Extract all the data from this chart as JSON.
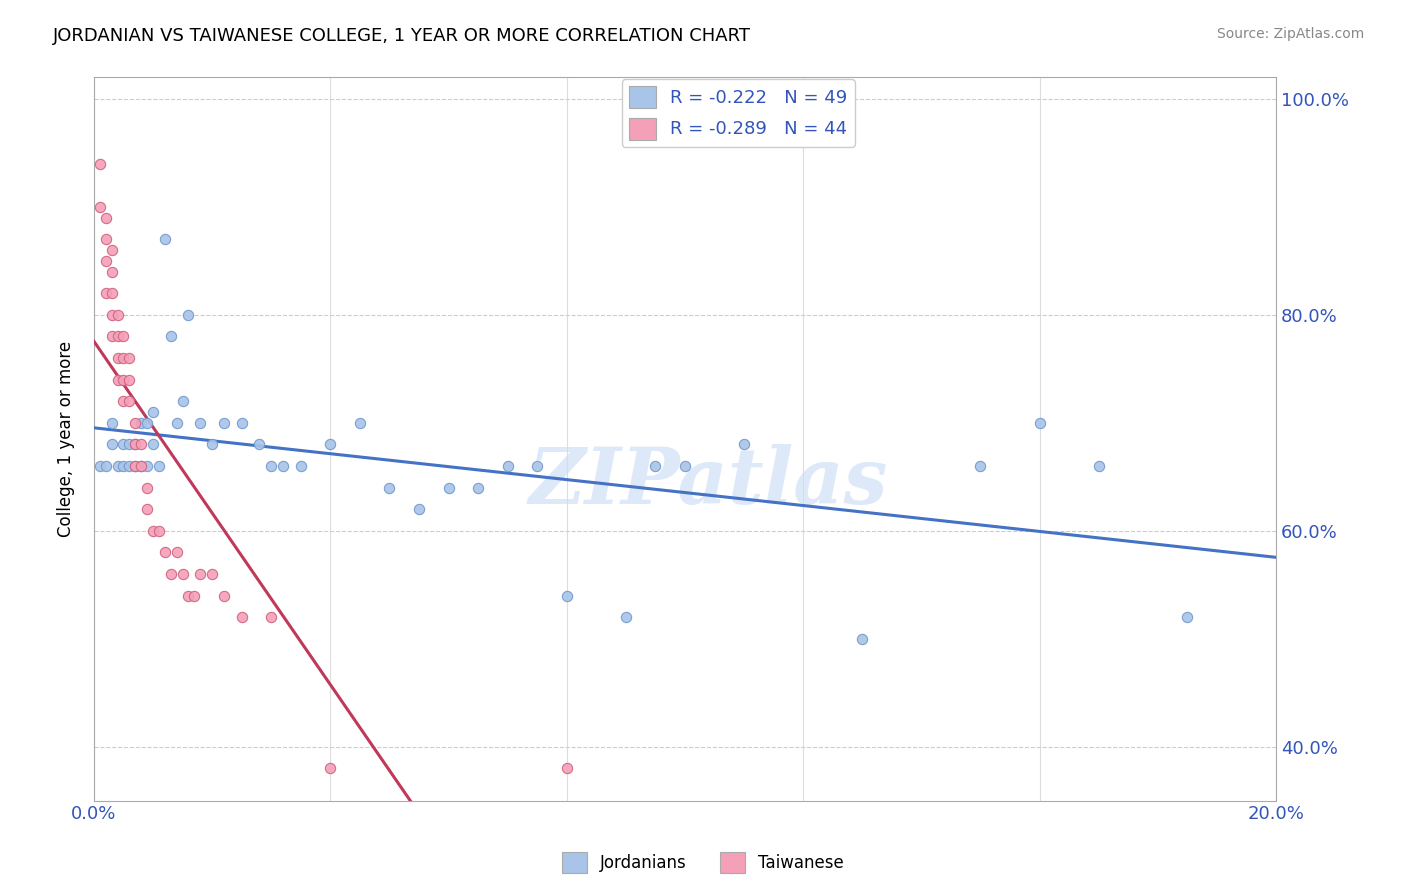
{
  "title": "JORDANIAN VS TAIWANESE COLLEGE, 1 YEAR OR MORE CORRELATION CHART",
  "source": "Source: ZipAtlas.com",
  "ylabel": "College, 1 year or more",
  "xlim": [
    0.0,
    0.2
  ],
  "ylim": [
    0.35,
    1.02
  ],
  "xtick_positions": [
    0.0,
    0.04,
    0.08,
    0.12,
    0.16,
    0.2
  ],
  "xticklabels": [
    "0.0%",
    "",
    "",
    "",
    "",
    "20.0%"
  ],
  "ytick_positions": [
    0.4,
    0.6,
    0.8,
    1.0
  ],
  "yticklabels": [
    "40.0%",
    "60.0%",
    "80.0%",
    "100.0%"
  ],
  "jordanians_color": "#a8c4e8",
  "taiwanese_color": "#f4a0b8",
  "trend_jordanians_color": "#4472c4",
  "trend_taiwanese_color": "#c0385a",
  "trend_dashed_color": "#d0a0b0",
  "watermark": "ZIPatlas",
  "jordanians_x": [
    0.001,
    0.002,
    0.003,
    0.003,
    0.004,
    0.005,
    0.005,
    0.006,
    0.006,
    0.007,
    0.007,
    0.008,
    0.008,
    0.009,
    0.009,
    0.01,
    0.01,
    0.011,
    0.012,
    0.013,
    0.014,
    0.015,
    0.016,
    0.018,
    0.02,
    0.022,
    0.025,
    0.028,
    0.03,
    0.032,
    0.035,
    0.04,
    0.045,
    0.05,
    0.055,
    0.06,
    0.065,
    0.07,
    0.075,
    0.08,
    0.09,
    0.095,
    0.1,
    0.11,
    0.13,
    0.15,
    0.16,
    0.17,
    0.185
  ],
  "jordanians_y": [
    0.66,
    0.66,
    0.7,
    0.68,
    0.66,
    0.68,
    0.66,
    0.68,
    0.66,
    0.68,
    0.66,
    0.7,
    0.66,
    0.7,
    0.66,
    0.71,
    0.68,
    0.66,
    0.87,
    0.78,
    0.7,
    0.72,
    0.8,
    0.7,
    0.68,
    0.7,
    0.7,
    0.68,
    0.66,
    0.66,
    0.66,
    0.68,
    0.7,
    0.64,
    0.62,
    0.64,
    0.64,
    0.66,
    0.66,
    0.54,
    0.52,
    0.66,
    0.66,
    0.68,
    0.5,
    0.66,
    0.7,
    0.66,
    0.52
  ],
  "taiwanese_x": [
    0.001,
    0.001,
    0.002,
    0.002,
    0.002,
    0.002,
    0.003,
    0.003,
    0.003,
    0.003,
    0.003,
    0.004,
    0.004,
    0.004,
    0.004,
    0.005,
    0.005,
    0.005,
    0.005,
    0.006,
    0.006,
    0.006,
    0.007,
    0.007,
    0.007,
    0.008,
    0.008,
    0.009,
    0.009,
    0.01,
    0.011,
    0.012,
    0.013,
    0.014,
    0.015,
    0.016,
    0.017,
    0.018,
    0.02,
    0.022,
    0.025,
    0.03,
    0.04,
    0.08
  ],
  "taiwanese_y": [
    0.94,
    0.9,
    0.89,
    0.87,
    0.85,
    0.82,
    0.86,
    0.84,
    0.82,
    0.8,
    0.78,
    0.8,
    0.78,
    0.76,
    0.74,
    0.78,
    0.76,
    0.74,
    0.72,
    0.76,
    0.74,
    0.72,
    0.7,
    0.68,
    0.66,
    0.68,
    0.66,
    0.64,
    0.62,
    0.6,
    0.6,
    0.58,
    0.56,
    0.58,
    0.56,
    0.54,
    0.54,
    0.56,
    0.56,
    0.54,
    0.52,
    0.52,
    0.38,
    0.38
  ]
}
